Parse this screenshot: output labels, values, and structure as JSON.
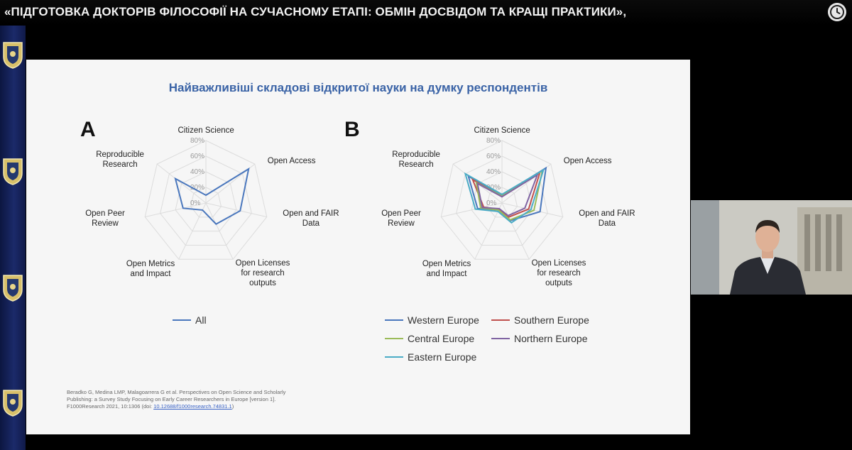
{
  "header": {
    "title": "«ПІДГОТОВКА ДОКТОРІВ ФІЛОСОФІЇ НА СУЧАСНОМУ ЕТАПІ: ОБМІН ДОСВІДОМ ТА КРАЩІ ПРАКТИКИ»,",
    "watch_later_icon": "clock-icon"
  },
  "slide": {
    "title": "Найважливіші складові відкритої науки на думку респондентів",
    "panel_a_letter": "A",
    "panel_b_letter": "B",
    "citation_text": "Beradko G, Medina LMP, Malagoarrera G et al. Perspectives on Open Science and Scholarly Publishing: a Survey Study Focusing on Early Career Researchers in Europe [version 1]. F1000Research 2021, 10:1306 (doi:",
    "citation_link": "10.12688/f1000research.74831.1",
    "citation_end": ")"
  },
  "colors": {
    "all": "#4a77bd",
    "western": "#4a77bd",
    "southern": "#c0504d",
    "central": "#9bbb59",
    "northern": "#8064a2",
    "eastern": "#4bacc6",
    "title": "#3a63a6"
  },
  "chart_data": [
    {
      "type": "radar",
      "panel": "A",
      "axes": [
        "Citizen Science",
        "Open Access",
        "Open and FAIR Data",
        "Open Licenses for research outputs",
        "Open Metrics and Impact",
        "Open Peer Review",
        "Reproducible Research"
      ],
      "ticks": [
        "0%",
        "20%",
        "40%",
        "60%",
        "80%"
      ],
      "rmax": 80,
      "series": [
        {
          "name": "All",
          "color": "#4a77bd",
          "values": [
            10,
            70,
            45,
            30,
            10,
            30,
            50
          ]
        }
      ],
      "legend": [
        "All"
      ]
    },
    {
      "type": "radar",
      "panel": "B",
      "axes": [
        "Citizen Science",
        "Open Access",
        "Open and FAIR Data",
        "Open Licenses for research outputs",
        "Open Metrics and Impact",
        "Open Peer Review",
        "Reproducible Research"
      ],
      "ticks": [
        "0%",
        "20%",
        "40%",
        "60%",
        "80%"
      ],
      "rmax": 80,
      "series": [
        {
          "name": "Western Europe",
          "color": "#4a77bd",
          "values": [
            10,
            72,
            50,
            25,
            10,
            32,
            55
          ]
        },
        {
          "name": "Southern Europe",
          "color": "#c0504d",
          "values": [
            8,
            62,
            35,
            20,
            9,
            24,
            48
          ]
        },
        {
          "name": "Central Europe",
          "color": "#9bbb59",
          "values": [
            9,
            66,
            42,
            24,
            10,
            28,
            42
          ]
        },
        {
          "name": "Northern Europe",
          "color": "#8064a2",
          "values": [
            8,
            58,
            30,
            18,
            8,
            26,
            40
          ]
        },
        {
          "name": "Eastern Europe",
          "color": "#4bacc6",
          "values": [
            11,
            68,
            38,
            28,
            12,
            35,
            60
          ]
        }
      ],
      "legend": [
        "Western Europe",
        "Southern Europe",
        "Central Europe",
        "Northern Europe",
        "Eastern Europe"
      ]
    }
  ]
}
